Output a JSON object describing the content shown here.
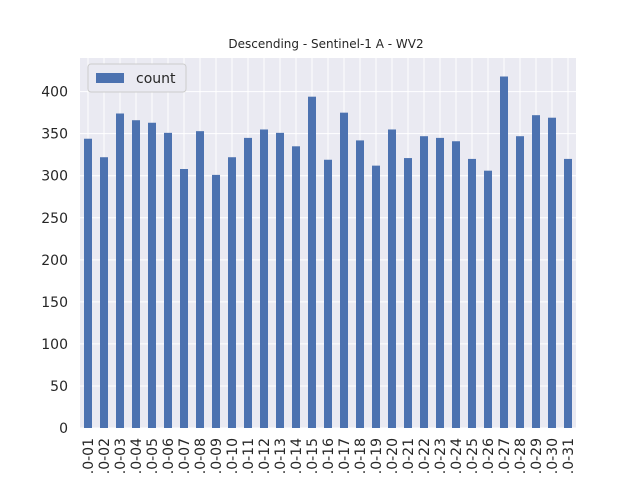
{
  "chart_data": {
    "type": "bar",
    "title": "Descending - Sentinel-1 A - WV2",
    "xlabel": "",
    "ylabel": "",
    "ylim": [
      0,
      440
    ],
    "yticks": [
      0,
      50,
      100,
      150,
      200,
      250,
      300,
      350,
      400
    ],
    "grid": true,
    "legend_position": "top-left",
    "categories": [
      ".0-01",
      ".0-02",
      ".0-03",
      ".0-04",
      ".0-05",
      ".0-06",
      ".0-07",
      ".0-08",
      ".0-09",
      ".0-10",
      ".0-11",
      ".0-12",
      ".0-13",
      ".0-14",
      ".0-15",
      ".0-16",
      ".0-17",
      ".0-18",
      ".0-19",
      ".0-20",
      ".0-21",
      ".0-22",
      ".0-23",
      ".0-24",
      ".0-25",
      ".0-26",
      ".0-27",
      ".0-28",
      ".0-29",
      ".0-30",
      ".0-31"
    ],
    "series": [
      {
        "name": "count",
        "color": "#4c72b0",
        "values": [
          344,
          322,
          374,
          366,
          363,
          351,
          308,
          353,
          301,
          322,
          345,
          355,
          351,
          335,
          394,
          319,
          375,
          342,
          312,
          355,
          321,
          347,
          345,
          341,
          320,
          306,
          418,
          347,
          372,
          369,
          320
        ]
      }
    ],
    "colors": {
      "plot_background": "#eaeaf2",
      "grid": "#ffffff",
      "bar": "#4c72b0"
    }
  }
}
